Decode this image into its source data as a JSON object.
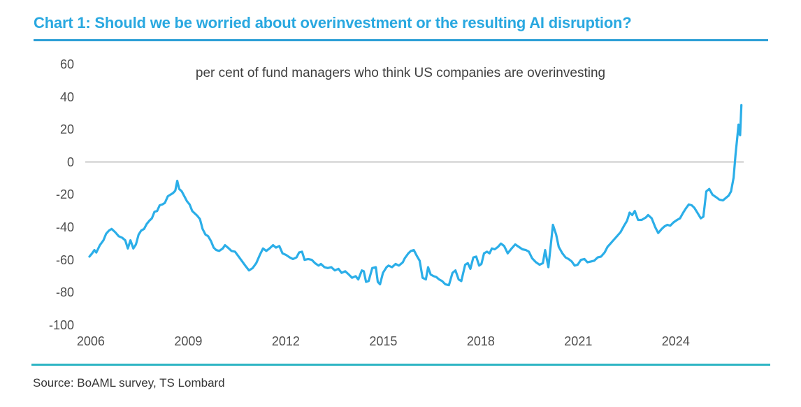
{
  "page": {
    "title": "Chart 1: Should we be worried about overinvestment or the resulting AI disruption?",
    "source": "Source: BoAML survey, TS Lombard"
  },
  "colors": {
    "accent_blue": "#29A8E0",
    "line_blue": "#2BAEE8",
    "teal_rule": "#2EB5C4",
    "grid_gray": "#939393",
    "axis_text_gray": "#4d4d4d"
  },
  "chart_data": {
    "type": "line",
    "title": "Chart 1: Should we be worried about overinvestment or the resulting AI disruption?",
    "subtitle": "per cent of fund managers who think US companies are overinvesting",
    "xlabel": "",
    "ylabel": "",
    "xlim": [
      2005.83,
      2026.09
    ],
    "ylim": [
      -100,
      60
    ],
    "x_ticks": [
      2006,
      2009,
      2012,
      2015,
      2018,
      2021,
      2024
    ],
    "y_ticks": [
      60,
      40,
      20,
      0,
      -20,
      -40,
      -60,
      -80,
      -100
    ],
    "gridlines": "zero-line-only",
    "legend": "none",
    "x_unit": "decimal year (approx., monthly survey)",
    "y_unit": "net per cent",
    "series": [
      {
        "name": "per cent of fund managers who think US companies are overinvesting",
        "color": "#2BAEE8",
        "points": [
          [
            2005.96,
            -58
          ],
          [
            2006.04,
            -56
          ],
          [
            2006.11,
            -54
          ],
          [
            2006.17,
            -55.5
          ],
          [
            2006.28,
            -51
          ],
          [
            2006.39,
            -48
          ],
          [
            2006.47,
            -44
          ],
          [
            2006.56,
            -42
          ],
          [
            2006.64,
            -41
          ],
          [
            2006.75,
            -43
          ],
          [
            2006.86,
            -45.5
          ],
          [
            2006.97,
            -46.5
          ],
          [
            2007.06,
            -48
          ],
          [
            2007.14,
            -53
          ],
          [
            2007.22,
            -48
          ],
          [
            2007.31,
            -53
          ],
          [
            2007.39,
            -50.5
          ],
          [
            2007.47,
            -44.5
          ],
          [
            2007.55,
            -42
          ],
          [
            2007.64,
            -41
          ],
          [
            2007.72,
            -38
          ],
          [
            2007.8,
            -36
          ],
          [
            2007.88,
            -34.5
          ],
          [
            2007.96,
            -30.5
          ],
          [
            2008.04,
            -30
          ],
          [
            2008.12,
            -26.5
          ],
          [
            2008.2,
            -26
          ],
          [
            2008.28,
            -25
          ],
          [
            2008.37,
            -21
          ],
          [
            2008.45,
            -20
          ],
          [
            2008.53,
            -19
          ],
          [
            2008.6,
            -17.5
          ],
          [
            2008.66,
            -11.5
          ],
          [
            2008.72,
            -16.5
          ],
          [
            2008.8,
            -18
          ],
          [
            2008.88,
            -21
          ],
          [
            2008.96,
            -24
          ],
          [
            2009.04,
            -26
          ],
          [
            2009.12,
            -30
          ],
          [
            2009.2,
            -31.5
          ],
          [
            2009.28,
            -33
          ],
          [
            2009.36,
            -35
          ],
          [
            2009.44,
            -41
          ],
          [
            2009.53,
            -44.5
          ],
          [
            2009.61,
            -45.5
          ],
          [
            2009.7,
            -48.5
          ],
          [
            2009.78,
            -52.5
          ],
          [
            2009.86,
            -54
          ],
          [
            2009.95,
            -54.5
          ],
          [
            2010.06,
            -53
          ],
          [
            2010.13,
            -51
          ],
          [
            2010.22,
            -52.5
          ],
          [
            2010.33,
            -54.5
          ],
          [
            2010.44,
            -55
          ],
          [
            2010.55,
            -58
          ],
          [
            2010.66,
            -61
          ],
          [
            2010.77,
            -64
          ],
          [
            2010.87,
            -66.5
          ],
          [
            2010.98,
            -65
          ],
          [
            2011.09,
            -62
          ],
          [
            2011.2,
            -57
          ],
          [
            2011.3,
            -53
          ],
          [
            2011.4,
            -54.5
          ],
          [
            2011.5,
            -53
          ],
          [
            2011.61,
            -51
          ],
          [
            2011.7,
            -52.5
          ],
          [
            2011.8,
            -51.5
          ],
          [
            2011.9,
            -56
          ],
          [
            2012.01,
            -57
          ],
          [
            2012.12,
            -58.5
          ],
          [
            2012.22,
            -59.5
          ],
          [
            2012.33,
            -58.5
          ],
          [
            2012.41,
            -55.5
          ],
          [
            2012.5,
            -55
          ],
          [
            2012.58,
            -60
          ],
          [
            2012.69,
            -59.5
          ],
          [
            2012.8,
            -60
          ],
          [
            2012.9,
            -62
          ],
          [
            2013.01,
            -63.5
          ],
          [
            2013.08,
            -62.5
          ],
          [
            2013.19,
            -64.5
          ],
          [
            2013.29,
            -65
          ],
          [
            2013.4,
            -64.5
          ],
          [
            2013.51,
            -66.5
          ],
          [
            2013.62,
            -65.5
          ],
          [
            2013.72,
            -68
          ],
          [
            2013.83,
            -67
          ],
          [
            2013.94,
            -69
          ],
          [
            2014.04,
            -71
          ],
          [
            2014.15,
            -70
          ],
          [
            2014.23,
            -72
          ],
          [
            2014.34,
            -66.5
          ],
          [
            2014.4,
            -67
          ],
          [
            2014.47,
            -73.5
          ],
          [
            2014.55,
            -73
          ],
          [
            2014.66,
            -65
          ],
          [
            2014.77,
            -64.5
          ],
          [
            2014.83,
            -73.5
          ],
          [
            2014.9,
            -75
          ],
          [
            2014.99,
            -68
          ],
          [
            2015.1,
            -64.5
          ],
          [
            2015.16,
            -63.5
          ],
          [
            2015.27,
            -64.5
          ],
          [
            2015.38,
            -62.5
          ],
          [
            2015.48,
            -63.5
          ],
          [
            2015.6,
            -61.5
          ],
          [
            2015.66,
            -59
          ],
          [
            2015.77,
            -56
          ],
          [
            2015.85,
            -54.5
          ],
          [
            2015.94,
            -54
          ],
          [
            2016.03,
            -57.5
          ],
          [
            2016.12,
            -60.5
          ],
          [
            2016.21,
            -71
          ],
          [
            2016.31,
            -72
          ],
          [
            2016.38,
            -64.5
          ],
          [
            2016.46,
            -69
          ],
          [
            2016.55,
            -70
          ],
          [
            2016.63,
            -70.5
          ],
          [
            2016.72,
            -72
          ],
          [
            2016.81,
            -73
          ],
          [
            2016.91,
            -75
          ],
          [
            2017.02,
            -75.5
          ],
          [
            2017.13,
            -68
          ],
          [
            2017.22,
            -66.5
          ],
          [
            2017.32,
            -72
          ],
          [
            2017.4,
            -73
          ],
          [
            2017.52,
            -63
          ],
          [
            2017.6,
            -62
          ],
          [
            2017.68,
            -65.5
          ],
          [
            2017.77,
            -58.5
          ],
          [
            2017.86,
            -58
          ],
          [
            2017.95,
            -63.5
          ],
          [
            2018.02,
            -62.5
          ],
          [
            2018.1,
            -56
          ],
          [
            2018.19,
            -55
          ],
          [
            2018.27,
            -56
          ],
          [
            2018.34,
            -53
          ],
          [
            2018.43,
            -53.5
          ],
          [
            2018.53,
            -52
          ],
          [
            2018.62,
            -50
          ],
          [
            2018.72,
            -51.5
          ],
          [
            2018.83,
            -56
          ],
          [
            2018.95,
            -53
          ],
          [
            2019.06,
            -50.5
          ],
          [
            2019.17,
            -52
          ],
          [
            2019.28,
            -53.5
          ],
          [
            2019.39,
            -54
          ],
          [
            2019.48,
            -55
          ],
          [
            2019.58,
            -59
          ],
          [
            2019.7,
            -61.5
          ],
          [
            2019.81,
            -63
          ],
          [
            2019.91,
            -62
          ],
          [
            2019.98,
            -54
          ],
          [
            2020.08,
            -64.5
          ],
          [
            2020.22,
            -38.5
          ],
          [
            2020.32,
            -44.5
          ],
          [
            2020.4,
            -52
          ],
          [
            2020.51,
            -56
          ],
          [
            2020.61,
            -58.5
          ],
          [
            2020.7,
            -59.5
          ],
          [
            2020.8,
            -61
          ],
          [
            2020.89,
            -63.5
          ],
          [
            2020.98,
            -63
          ],
          [
            2021.08,
            -60
          ],
          [
            2021.19,
            -59.5
          ],
          [
            2021.28,
            -61.5
          ],
          [
            2021.39,
            -61
          ],
          [
            2021.49,
            -60.5
          ],
          [
            2021.6,
            -58.5
          ],
          [
            2021.7,
            -58
          ],
          [
            2021.81,
            -55.5
          ],
          [
            2021.9,
            -52
          ],
          [
            2021.99,
            -50
          ],
          [
            2022.1,
            -47.5
          ],
          [
            2022.19,
            -45.5
          ],
          [
            2022.3,
            -43
          ],
          [
            2022.41,
            -39
          ],
          [
            2022.5,
            -36
          ],
          [
            2022.58,
            -31
          ],
          [
            2022.66,
            -32.5
          ],
          [
            2022.74,
            -30
          ],
          [
            2022.84,
            -35.5
          ],
          [
            2022.95,
            -35.5
          ],
          [
            2023.08,
            -34
          ],
          [
            2023.15,
            -32.5
          ],
          [
            2023.26,
            -34.5
          ],
          [
            2023.37,
            -40
          ],
          [
            2023.46,
            -43.5
          ],
          [
            2023.57,
            -41
          ],
          [
            2023.65,
            -39.5
          ],
          [
            2023.74,
            -38.5
          ],
          [
            2023.83,
            -39
          ],
          [
            2023.93,
            -37
          ],
          [
            2024.04,
            -35.5
          ],
          [
            2024.13,
            -34.5
          ],
          [
            2024.23,
            -31
          ],
          [
            2024.31,
            -28.5
          ],
          [
            2024.4,
            -26
          ],
          [
            2024.49,
            -26.5
          ],
          [
            2024.57,
            -28
          ],
          [
            2024.68,
            -31.5
          ],
          [
            2024.77,
            -34.5
          ],
          [
            2024.85,
            -33.5
          ],
          [
            2024.94,
            -18
          ],
          [
            2025.03,
            -16.5
          ],
          [
            2025.13,
            -20
          ],
          [
            2025.24,
            -21.5
          ],
          [
            2025.34,
            -23
          ],
          [
            2025.45,
            -23.5
          ],
          [
            2025.54,
            -22
          ],
          [
            2025.63,
            -20.5
          ],
          [
            2025.7,
            -18
          ],
          [
            2025.78,
            -9.5
          ],
          [
            2025.84,
            5
          ],
          [
            2025.89,
            14.5
          ],
          [
            2025.93,
            23
          ],
          [
            2025.95,
            18
          ],
          [
            2025.98,
            16.5
          ],
          [
            2026.02,
            35
          ]
        ]
      }
    ]
  }
}
